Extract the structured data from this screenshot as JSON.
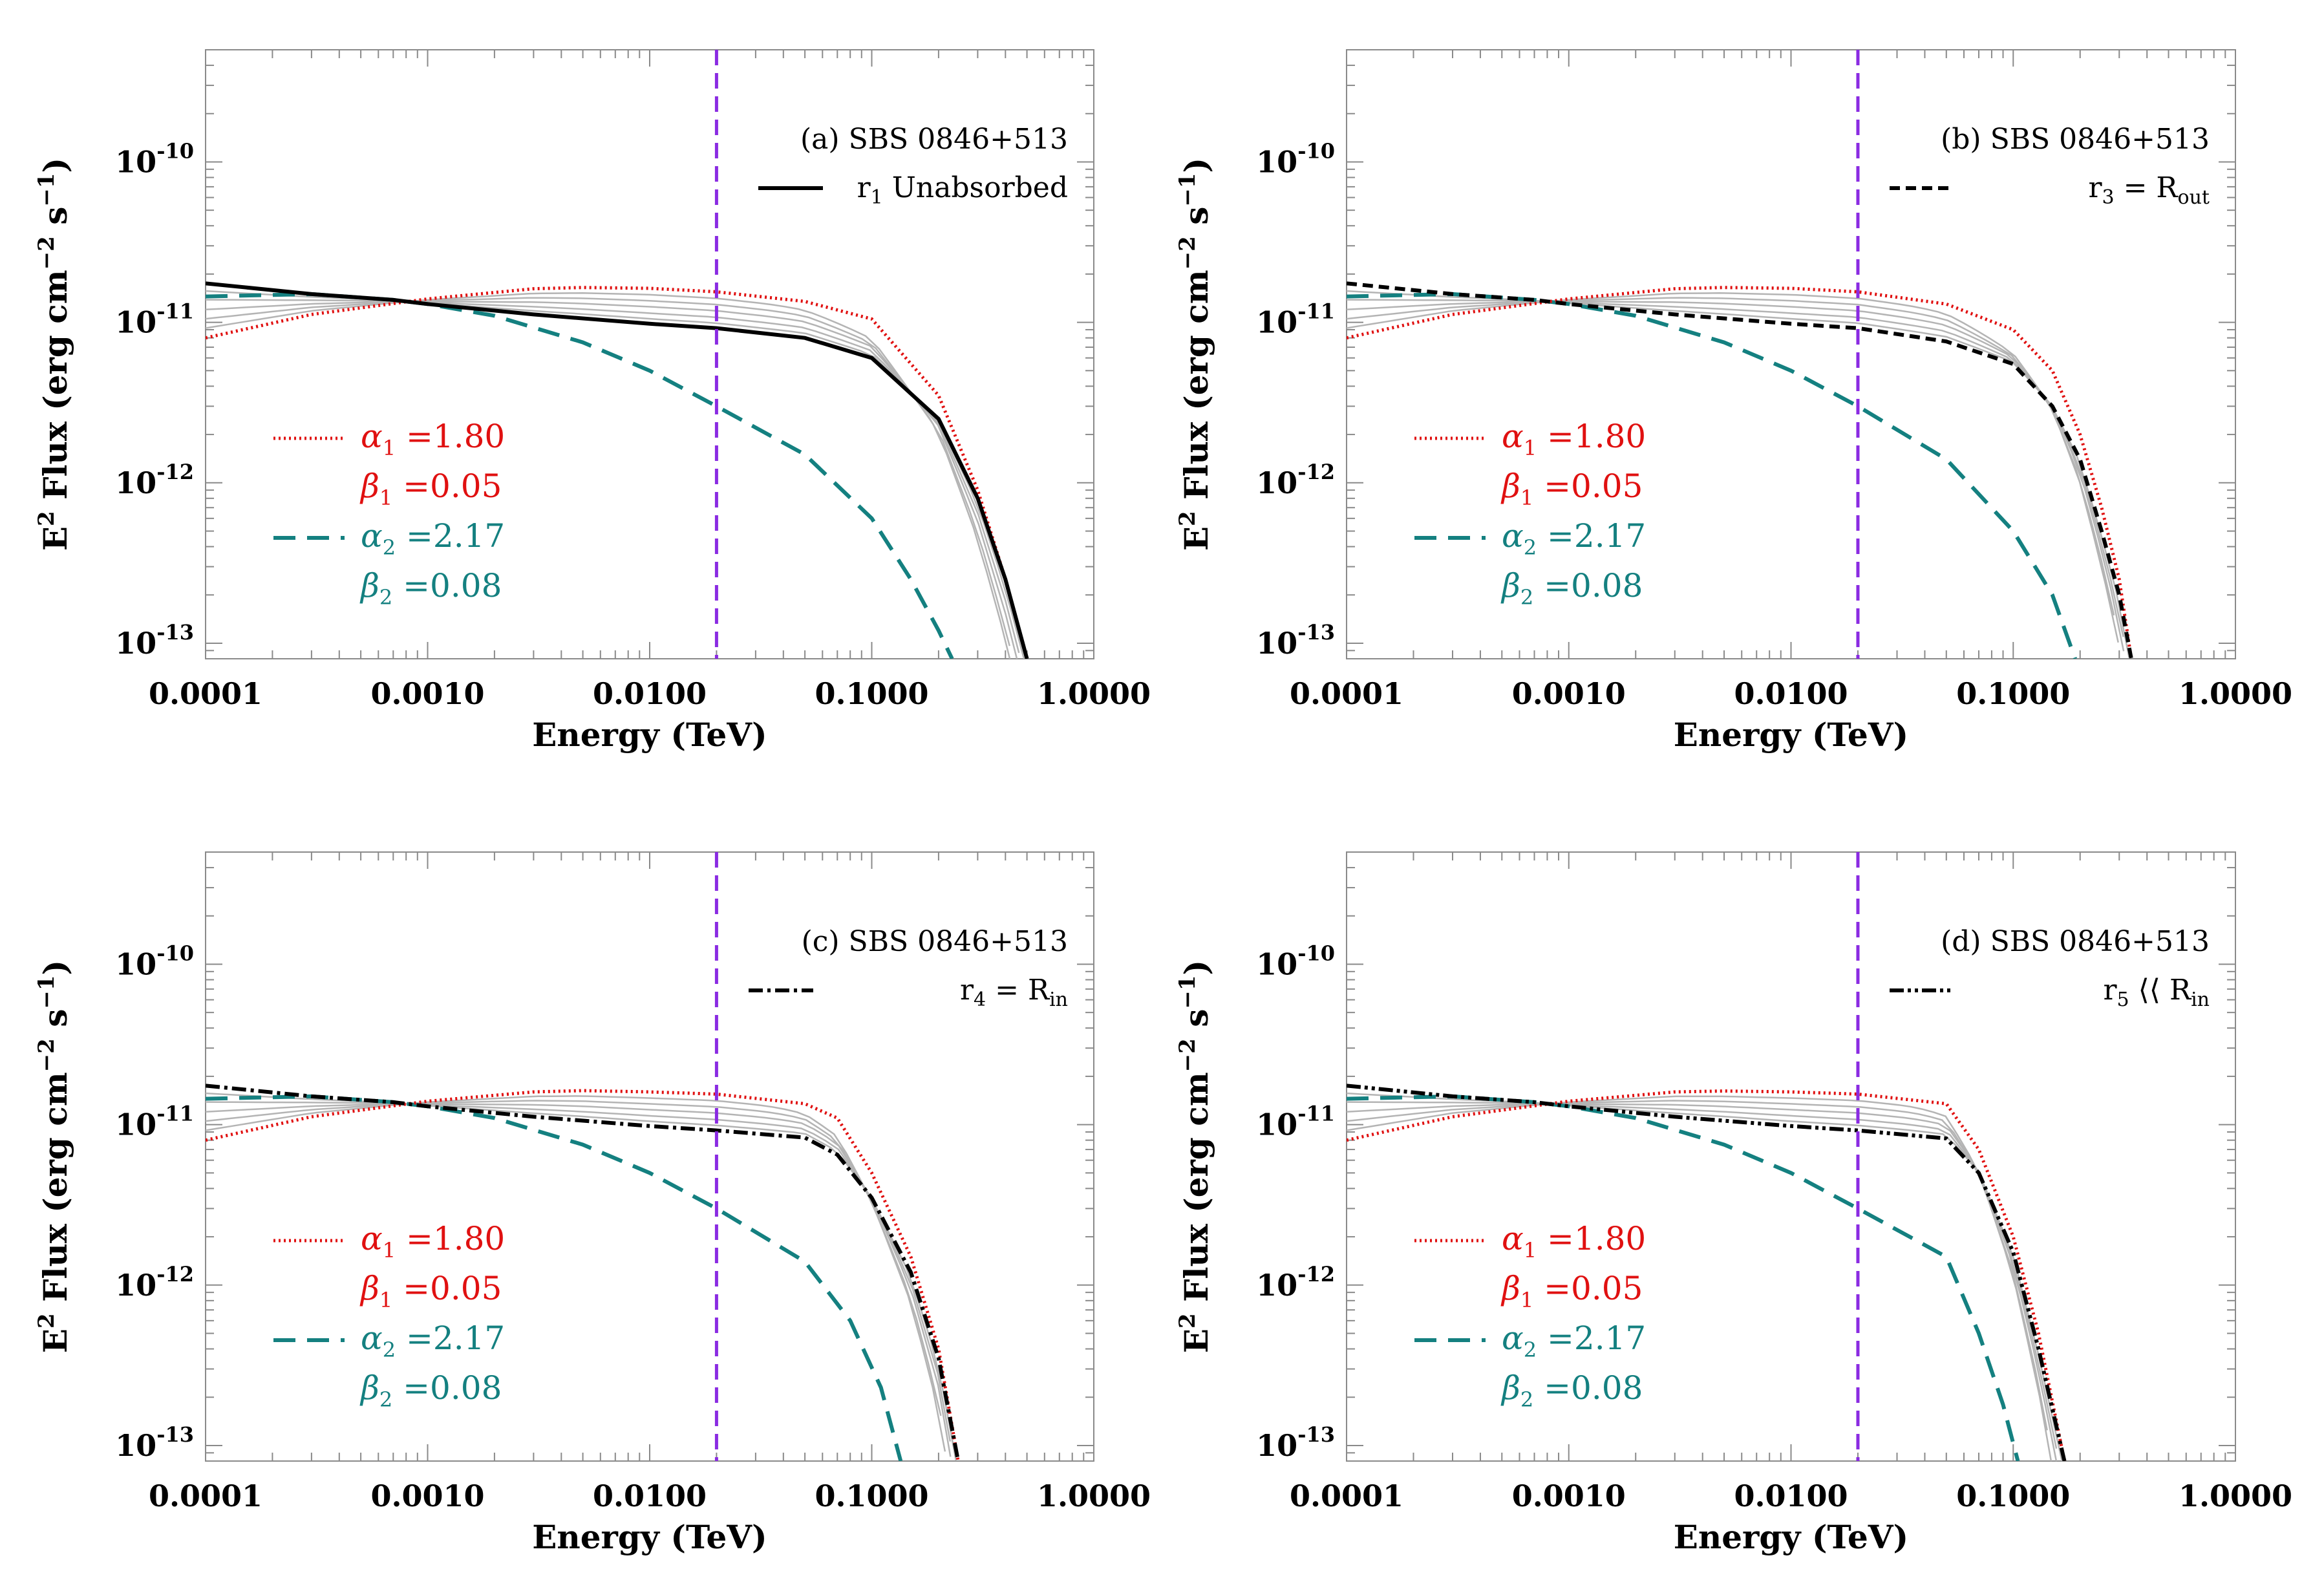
{
  "chart_data": [
    {
      "type": "line",
      "panel": "a",
      "title": "(a) SBS 0846+513",
      "legend_label": "r1 Unabsorbed",
      "legend_main": "r",
      "legend_sub": "1",
      "legend_tail": " Unabsorbed",
      "legend_style": "solid",
      "xlabel": "Energy (TeV)",
      "ylabel": "E2 Flux (erg cm-2 s-1)",
      "xscale": "log",
      "yscale": "log",
      "xlim": [
        0.0001,
        1.0
      ],
      "ylim": [
        8e-14,
        5e-10
      ],
      "x_ticks": [
        "0.0001",
        "0.0010",
        "0.0100",
        "0.1000",
        "1.0000"
      ],
      "y_ticks": [
        {
          "base": "10",
          "exp": "-10"
        },
        {
          "base": "10",
          "exp": "-11"
        },
        {
          "base": "10",
          "exp": "-12"
        },
        {
          "base": "10",
          "exp": "-13"
        }
      ],
      "vline_x": 0.02,
      "params": [
        {
          "symbol": "α",
          "sub": "1",
          "value": "=1.80",
          "color": "#e01010"
        },
        {
          "symbol": "β",
          "sub": "1",
          "value": "=0.05",
          "color": "#e01010"
        },
        {
          "symbol": "α",
          "sub": "2",
          "value": "=2.17",
          "color": "#148080"
        },
        {
          "symbol": "β",
          "sub": "2",
          "value": "=0.08",
          "color": "#148080"
        }
      ],
      "series": [
        {
          "name": "alpha1 beta1 (red dotted)",
          "x": [
            0.0001,
            0.0003,
            0.001,
            0.003,
            0.005,
            0.01,
            0.02,
            0.05,
            0.1,
            0.2,
            0.3,
            0.4,
            0.5
          ],
          "y": [
            8e-12,
            1.12e-11,
            1.4e-11,
            1.62e-11,
            1.65e-11,
            1.63e-11,
            1.55e-11,
            1.35e-11,
            1.05e-11,
            3.5e-12,
            9e-13,
            2.5e-13,
            8e-14
          ]
        },
        {
          "name": "alpha2 beta2 (teal dashed)",
          "x": [
            0.0001,
            0.0003,
            0.0007,
            0.001,
            0.002,
            0.005,
            0.01,
            0.02,
            0.05,
            0.1,
            0.15,
            0.2,
            0.23
          ],
          "y": [
            1.45e-11,
            1.5e-11,
            1.38e-11,
            1.3e-11,
            1.1e-11,
            7.5e-12,
            5e-12,
            3e-12,
            1.5e-12,
            6e-13,
            2.5e-13,
            1.2e-13,
            8e-14
          ]
        },
        {
          "name": "r1 unabsorbed (black solid)",
          "x": [
            0.0001,
            0.0003,
            0.0007,
            0.001,
            0.003,
            0.01,
            0.02,
            0.05,
            0.1,
            0.2,
            0.3,
            0.4,
            0.5
          ],
          "y": [
            1.75e-11,
            1.5e-11,
            1.38e-11,
            1.3e-11,
            1.12e-11,
            9.8e-12,
            9.2e-12,
            8e-12,
            6e-12,
            2.5e-12,
            8e-13,
            2.5e-13,
            8e-14
          ]
        }
      ]
    },
    {
      "type": "line",
      "panel": "b",
      "title": "(b) SBS 0846+513",
      "legend_label": "r3 = Rout",
      "legend_main": "r",
      "legend_sub": "3",
      "legend_tail": " = R",
      "legend_sub2": "out",
      "legend_style": "dashed",
      "xlabel": "Energy (TeV)",
      "ylabel": "E2 Flux (erg cm-2 s-1)",
      "xscale": "log",
      "yscale": "log",
      "xlim": [
        0.0001,
        1.0
      ],
      "ylim": [
        8e-14,
        5e-10
      ],
      "x_ticks": [
        "0.0001",
        "0.0010",
        "0.0100",
        "0.1000",
        "1.0000"
      ],
      "y_ticks": [
        {
          "base": "10",
          "exp": "-10"
        },
        {
          "base": "10",
          "exp": "-11"
        },
        {
          "base": "10",
          "exp": "-12"
        },
        {
          "base": "10",
          "exp": "-13"
        }
      ],
      "vline_x": 0.02,
      "params": [
        {
          "symbol": "α",
          "sub": "1",
          "value": "=1.80",
          "color": "#e01010"
        },
        {
          "symbol": "β",
          "sub": "1",
          "value": "=0.05",
          "color": "#e01010"
        },
        {
          "symbol": "α",
          "sub": "2",
          "value": "=2.17",
          "color": "#148080"
        },
        {
          "symbol": "β",
          "sub": "2",
          "value": "=0.08",
          "color": "#148080"
        }
      ],
      "series": [
        {
          "name": "alpha1 beta1 (red dotted)",
          "x": [
            0.0001,
            0.0003,
            0.001,
            0.003,
            0.005,
            0.01,
            0.02,
            0.05,
            0.1,
            0.15,
            0.2,
            0.25,
            0.3,
            0.34
          ],
          "y": [
            8e-12,
            1.12e-11,
            1.4e-11,
            1.62e-11,
            1.65e-11,
            1.63e-11,
            1.55e-11,
            1.3e-11,
            9e-12,
            5e-12,
            2e-12,
            7e-13,
            2.5e-13,
            8e-14
          ]
        },
        {
          "name": "alpha2 beta2 (teal dashed)",
          "x": [
            0.0001,
            0.0003,
            0.0007,
            0.001,
            0.002,
            0.005,
            0.01,
            0.02,
            0.05,
            0.1,
            0.15,
            0.19
          ],
          "y": [
            1.45e-11,
            1.5e-11,
            1.38e-11,
            1.3e-11,
            1.1e-11,
            7.5e-12,
            5e-12,
            3e-12,
            1.4e-12,
            5e-13,
            2e-13,
            8e-14
          ]
        },
        {
          "name": "r3 = Rout (black dashed)",
          "x": [
            0.0001,
            0.0003,
            0.0007,
            0.001,
            0.003,
            0.01,
            0.02,
            0.05,
            0.1,
            0.15,
            0.2,
            0.25,
            0.3,
            0.34
          ],
          "y": [
            1.75e-11,
            1.5e-11,
            1.38e-11,
            1.3e-11,
            1.12e-11,
            9.8e-12,
            9.2e-12,
            7.6e-12,
            5.5e-12,
            3e-12,
            1.4e-12,
            5e-13,
            2e-13,
            8e-14
          ]
        }
      ]
    },
    {
      "type": "line",
      "panel": "c",
      "title": "(c) SBS 0846+513",
      "legend_label": "r4 = Rin",
      "legend_main": "r",
      "legend_sub": "4",
      "legend_tail": " = R",
      "legend_sub2": "in",
      "legend_style": "dashdot",
      "xlabel": "Energy (TeV)",
      "ylabel": "E2 Flux (erg cm-2 s-1)",
      "xscale": "log",
      "yscale": "log",
      "xlim": [
        0.0001,
        1.0
      ],
      "ylim": [
        8e-14,
        5e-10
      ],
      "x_ticks": [
        "0.0001",
        "0.0010",
        "0.0100",
        "0.1000",
        "1.0000"
      ],
      "y_ticks": [
        {
          "base": "10",
          "exp": "-10"
        },
        {
          "base": "10",
          "exp": "-11"
        },
        {
          "base": "10",
          "exp": "-12"
        },
        {
          "base": "10",
          "exp": "-13"
        }
      ],
      "vline_x": 0.02,
      "params": [
        {
          "symbol": "α",
          "sub": "1",
          "value": "=1.80",
          "color": "#e01010"
        },
        {
          "symbol": "β",
          "sub": "1",
          "value": "=0.05",
          "color": "#e01010"
        },
        {
          "symbol": "α",
          "sub": "2",
          "value": "=2.17",
          "color": "#148080"
        },
        {
          "symbol": "β",
          "sub": "2",
          "value": "=0.08",
          "color": "#148080"
        }
      ],
      "series": [
        {
          "name": "alpha1 beta1 (red dotted)",
          "x": [
            0.0001,
            0.0003,
            0.001,
            0.003,
            0.005,
            0.01,
            0.02,
            0.05,
            0.07,
            0.1,
            0.15,
            0.2,
            0.245
          ],
          "y": [
            8e-12,
            1.12e-11,
            1.4e-11,
            1.6e-11,
            1.63e-11,
            1.6e-11,
            1.55e-11,
            1.35e-11,
            1.1e-11,
            5e-12,
            1.5e-12,
            4e-13,
            8e-14
          ]
        },
        {
          "name": "alpha2 beta2 (teal dashed)",
          "x": [
            0.0001,
            0.0003,
            0.0007,
            0.001,
            0.002,
            0.005,
            0.01,
            0.02,
            0.05,
            0.08,
            0.11,
            0.135
          ],
          "y": [
            1.45e-11,
            1.5e-11,
            1.38e-11,
            1.3e-11,
            1.1e-11,
            7.5e-12,
            5e-12,
            3e-12,
            1.4e-12,
            6e-13,
            2.3e-13,
            8e-14
          ]
        },
        {
          "name": "r4 = Rin (black dash-dot)",
          "x": [
            0.0001,
            0.0003,
            0.0007,
            0.001,
            0.003,
            0.01,
            0.02,
            0.05,
            0.07,
            0.1,
            0.15,
            0.2,
            0.245
          ],
          "y": [
            1.75e-11,
            1.5e-11,
            1.38e-11,
            1.3e-11,
            1.12e-11,
            9.8e-12,
            9.2e-12,
            8.3e-12,
            6.5e-12,
            3.5e-12,
            1.2e-12,
            3.5e-13,
            8e-14
          ]
        }
      ]
    },
    {
      "type": "line",
      "panel": "d",
      "title": "(d) SBS 0846+513",
      "legend_label": "r5 << Rin",
      "legend_main": "r",
      "legend_sub": "5",
      "legend_tail": " ⟨⟨ R",
      "legend_sub2": "in",
      "legend_style": "dashdotdot",
      "xlabel": "Energy (TeV)",
      "ylabel": "E2 Flux (erg cm-2 s-1)",
      "xscale": "log",
      "yscale": "log",
      "xlim": [
        0.0001,
        1.0
      ],
      "ylim": [
        8e-14,
        5e-10
      ],
      "x_ticks": [
        "0.0001",
        "0.0010",
        "0.0100",
        "0.1000",
        "1.0000"
      ],
      "y_ticks": [
        {
          "base": "10",
          "exp": "-10"
        },
        {
          "base": "10",
          "exp": "-11"
        },
        {
          "base": "10",
          "exp": "-12"
        },
        {
          "base": "10",
          "exp": "-13"
        }
      ],
      "vline_x": 0.02,
      "params": [
        {
          "symbol": "α",
          "sub": "1",
          "value": "=1.80",
          "color": "#e01010"
        },
        {
          "symbol": "β",
          "sub": "1",
          "value": "=0.05",
          "color": "#e01010"
        },
        {
          "symbol": "α",
          "sub": "2",
          "value": "=2.17",
          "color": "#148080"
        },
        {
          "symbol": "β",
          "sub": "2",
          "value": "=0.08",
          "color": "#148080"
        }
      ],
      "series": [
        {
          "name": "alpha1 beta1 (red dotted)",
          "x": [
            0.0001,
            0.0003,
            0.001,
            0.003,
            0.005,
            0.01,
            0.02,
            0.05,
            0.07,
            0.1,
            0.13,
            0.17
          ],
          "y": [
            8e-12,
            1.12e-11,
            1.4e-11,
            1.6e-11,
            1.62e-11,
            1.6e-11,
            1.55e-11,
            1.35e-11,
            7e-12,
            2e-12,
            5e-13,
            8e-14
          ]
        },
        {
          "name": "alpha2 beta2 (teal dashed)",
          "x": [
            0.0001,
            0.0003,
            0.0007,
            0.001,
            0.002,
            0.005,
            0.01,
            0.02,
            0.05,
            0.07,
            0.09,
            0.105
          ],
          "y": [
            1.45e-11,
            1.5e-11,
            1.38e-11,
            1.3e-11,
            1.1e-11,
            7.5e-12,
            5e-12,
            3e-12,
            1.5e-12,
            5e-13,
            1.8e-13,
            8e-14
          ]
        },
        {
          "name": "r5 << Rin (black dash-dot-dot)",
          "x": [
            0.0001,
            0.0003,
            0.0007,
            0.001,
            0.003,
            0.01,
            0.02,
            0.05,
            0.07,
            0.1,
            0.13,
            0.17
          ],
          "y": [
            1.75e-11,
            1.5e-11,
            1.38e-11,
            1.3e-11,
            1.12e-11,
            9.8e-12,
            9.2e-12,
            8.2e-12,
            5e-12,
            1.6e-12,
            4e-13,
            8e-14
          ]
        }
      ]
    }
  ]
}
